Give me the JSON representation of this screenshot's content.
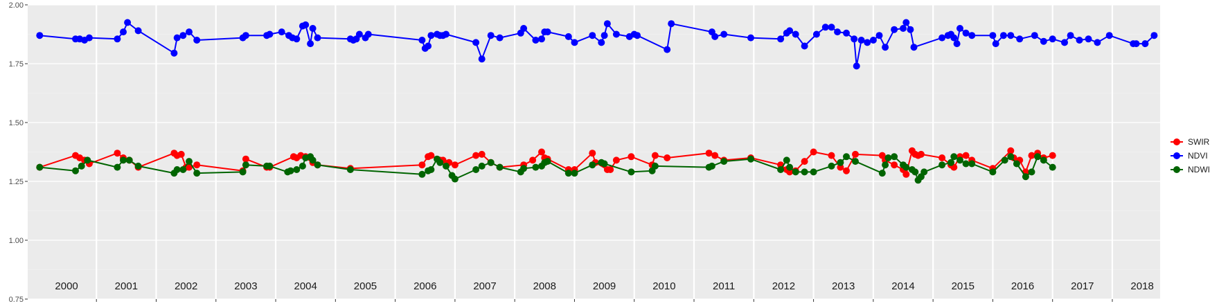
{
  "chart_data": {
    "type": "line",
    "title": "",
    "xlabel": "",
    "ylabel": "",
    "xlim": [
      1999.85,
      2018.8
    ],
    "ylim": [
      0.75,
      2.0
    ],
    "y_ticks": [
      "0.75",
      "1.00",
      "1.25",
      "1.50",
      "1.75",
      "2.00"
    ],
    "year_labels": [
      "2000",
      "2001",
      "2002",
      "2003",
      "2004",
      "2005",
      "2006",
      "2007",
      "2008",
      "2009",
      "2010",
      "2011",
      "2012",
      "2013",
      "2014",
      "2015",
      "2016",
      "2017",
      "2018"
    ],
    "grid": true,
    "legend_position": "right",
    "x": [
      2000.05,
      2000.65,
      2000.72,
      2000.8,
      2000.88,
      2001.35,
      2001.45,
      2001.55,
      2001.7,
      2002.3,
      2002.35,
      2002.45,
      2002.55,
      2002.68,
      2003.45,
      2003.5,
      2003.85,
      2003.9,
      2004.1,
      2004.22,
      2004.35,
      2004.45,
      2004.5,
      2004.58,
      2004.62,
      2004.7,
      2005.25,
      2005.3,
      2005.35,
      2005.4,
      2005.5,
      2005.55,
      2006.45,
      2006.5,
      2006.55,
      2006.7,
      2006.75,
      2006.8,
      2006.85,
      2007.0,
      2007.1,
      2007.35,
      2007.45,
      2007.6,
      2007.75,
      2008.1,
      2008.15,
      2008.35,
      2008.45,
      2008.5,
      2008.55,
      2008.9,
      2009.0,
      2009.3,
      2009.4,
      2009.5,
      2009.55,
      2009.7,
      2009.92,
      2010.0,
      2010.25,
      2010.35,
      2010.55,
      2010.62,
      2011.3,
      2011.35,
      2011.5,
      2011.95,
      2012.45,
      2012.55,
      2012.6,
      2012.7,
      2012.85,
      2013.05,
      2013.2,
      2013.3,
      2013.45,
      2013.55,
      2013.7,
      2013.9,
      2013.95,
      2014.0,
      2014.1,
      2014.2,
      2014.35,
      2014.5,
      2014.55,
      2014.65,
      2014.68,
      2014.72,
      2014.8,
      2014.85,
      2014.9,
      2014.95,
      2015.0,
      2015.3,
      2015.55,
      2015.6,
      2015.7,
      2015.8,
      2015.9,
      2016.05,
      2016.18,
      2016.3,
      2016.4,
      2016.7,
      2016.85,
      2017.0,
      2017.15,
      2017.3,
      2017.45,
      2017.6,
      2017.7,
      2017.8,
      2017.95,
      2018.35,
      2018.4,
      2018.7
    ],
    "series": [
      {
        "name": "SWIR",
        "color": "#ff0000",
        "x": [
          2000.05,
          2000.65,
          2000.72,
          2000.8,
          2000.88,
          2001.35,
          2001.45,
          2001.55,
          2001.7,
          2002.3,
          2002.35,
          2002.42,
          2002.5,
          2002.55,
          2002.68,
          2003.45,
          2003.5,
          2003.85,
          2003.9,
          2004.3,
          2004.35,
          2004.42,
          2004.5,
          2004.58,
          2004.62,
          2004.7,
          2005.25,
          2006.45,
          2006.55,
          2006.6,
          2006.75,
          2006.8,
          2006.9,
          2007.0,
          2007.35,
          2007.45,
          2007.6,
          2007.75,
          2008.15,
          2008.3,
          2008.45,
          2008.5,
          2008.55,
          2008.9,
          2009.0,
          2009.3,
          2009.35,
          2009.55,
          2009.6,
          2009.7,
          2009.95,
          2010.3,
          2010.35,
          2010.55,
          2011.25,
          2011.35,
          2011.5,
          2011.95,
          2012.45,
          2012.55,
          2012.6,
          2012.7,
          2012.85,
          2013.0,
          2013.3,
          2013.45,
          2013.55,
          2013.7,
          2014.15,
          2014.2,
          2014.35,
          2014.5,
          2014.55,
          2014.65,
          2014.7,
          2014.75,
          2014.8,
          2015.15,
          2015.3,
          2015.35,
          2015.45,
          2015.55,
          2015.65,
          2016.0,
          2016.3,
          2016.35,
          2016.45,
          2016.55,
          2016.65,
          2016.75,
          2016.85,
          2017.0
        ],
        "values": [
          1.31,
          1.36,
          1.35,
          1.34,
          1.325,
          1.37,
          1.35,
          1.34,
          1.31,
          1.37,
          1.36,
          1.365,
          1.31,
          1.31,
          1.32,
          1.295,
          1.345,
          1.31,
          1.31,
          1.355,
          1.35,
          1.36,
          1.355,
          1.35,
          1.33,
          1.32,
          1.305,
          1.32,
          1.355,
          1.36,
          1.34,
          1.34,
          1.33,
          1.32,
          1.36,
          1.365,
          1.33,
          1.31,
          1.32,
          1.34,
          1.375,
          1.35,
          1.345,
          1.3,
          1.3,
          1.37,
          1.33,
          1.3,
          1.3,
          1.34,
          1.355,
          1.32,
          1.36,
          1.35,
          1.37,
          1.36,
          1.34,
          1.35,
          1.32,
          1.3,
          1.29,
          1.295,
          1.335,
          1.375,
          1.36,
          1.31,
          1.295,
          1.365,
          1.36,
          1.34,
          1.32,
          1.3,
          1.28,
          1.38,
          1.365,
          1.36,
          1.365,
          1.35,
          1.32,
          1.31,
          1.355,
          1.36,
          1.34,
          1.305,
          1.38,
          1.35,
          1.34,
          1.29,
          1.36,
          1.37,
          1.35,
          1.36
        ]
      },
      {
        "name": "NDVI",
        "color": "#0000ff",
        "x": [
          2000.05,
          2000.65,
          2000.72,
          2000.8,
          2000.88,
          2001.35,
          2001.45,
          2001.52,
          2001.7,
          2002.3,
          2002.35,
          2002.45,
          2002.55,
          2002.68,
          2003.45,
          2003.5,
          2003.85,
          2003.9,
          2004.1,
          2004.22,
          2004.28,
          2004.35,
          2004.45,
          2004.5,
          2004.58,
          2004.62,
          2004.7,
          2005.25,
          2005.3,
          2005.35,
          2005.4,
          2005.5,
          2005.55,
          2006.45,
          2006.5,
          2006.55,
          2006.6,
          2006.7,
          2006.75,
          2006.8,
          2006.85,
          2007.35,
          2007.45,
          2007.6,
          2007.75,
          2008.1,
          2008.15,
          2008.35,
          2008.45,
          2008.5,
          2008.55,
          2008.9,
          2009.0,
          2009.3,
          2009.45,
          2009.5,
          2009.55,
          2009.7,
          2009.92,
          2010.0,
          2010.05,
          2010.55,
          2010.62,
          2011.3,
          2011.35,
          2011.5,
          2011.95,
          2012.45,
          2012.55,
          2012.6,
          2012.7,
          2012.85,
          2013.05,
          2013.2,
          2013.3,
          2013.4,
          2013.55,
          2013.68,
          2013.72,
          2013.8,
          2013.9,
          2014.0,
          2014.1,
          2014.2,
          2014.35,
          2014.5,
          2014.55,
          2014.62,
          2014.68,
          2015.15,
          2015.25,
          2015.3,
          2015.35,
          2015.4,
          2015.45,
          2015.55,
          2015.65,
          2016.0,
          2016.05,
          2016.18,
          2016.3,
          2016.45,
          2016.7,
          2016.85,
          2017.0,
          2017.2,
          2017.3,
          2017.45,
          2017.6,
          2017.75,
          2017.95,
          2018.35,
          2018.4,
          2018.55,
          2018.7
        ],
        "values": [
          1.87,
          1.855,
          1.855,
          1.85,
          1.86,
          1.855,
          1.885,
          1.925,
          1.89,
          1.795,
          1.86,
          1.87,
          1.885,
          1.85,
          1.86,
          1.87,
          1.87,
          1.875,
          1.885,
          1.87,
          1.86,
          1.855,
          1.91,
          1.915,
          1.835,
          1.9,
          1.86,
          1.855,
          1.85,
          1.855,
          1.875,
          1.86,
          1.875,
          1.85,
          1.815,
          1.825,
          1.87,
          1.875,
          1.87,
          1.87,
          1.875,
          1.84,
          1.77,
          1.87,
          1.86,
          1.88,
          1.9,
          1.85,
          1.855,
          1.885,
          1.885,
          1.865,
          1.84,
          1.87,
          1.84,
          1.87,
          1.92,
          1.875,
          1.865,
          1.875,
          1.87,
          1.81,
          1.92,
          1.885,
          1.865,
          1.875,
          1.86,
          1.855,
          1.88,
          1.89,
          1.875,
          1.825,
          1.875,
          1.905,
          1.905,
          1.885,
          1.88,
          1.855,
          1.74,
          1.85,
          1.84,
          1.85,
          1.87,
          1.82,
          1.895,
          1.9,
          1.925,
          1.895,
          1.82,
          1.86,
          1.87,
          1.875,
          1.86,
          1.835,
          1.9,
          1.88,
          1.87,
          1.87,
          1.835,
          1.87,
          1.87,
          1.855,
          1.87,
          1.845,
          1.855,
          1.84,
          1.87,
          1.85,
          1.855,
          1.84,
          1.87,
          1.835,
          1.835,
          1.835,
          1.87
        ]
      },
      {
        "name": "NDWI",
        "color": "#006400",
        "x": [
          2000.05,
          2000.65,
          2000.75,
          2000.85,
          2001.35,
          2001.45,
          2001.55,
          2001.7,
          2002.3,
          2002.35,
          2002.45,
          2002.55,
          2002.68,
          2003.45,
          2003.5,
          2003.85,
          2003.9,
          2004.2,
          2004.25,
          2004.35,
          2004.45,
          2004.5,
          2004.58,
          2004.62,
          2004.7,
          2005.25,
          2006.45,
          2006.55,
          2006.6,
          2006.7,
          2006.75,
          2006.85,
          2006.95,
          2007.0,
          2007.35,
          2007.45,
          2007.6,
          2007.75,
          2008.1,
          2008.15,
          2008.35,
          2008.45,
          2008.5,
          2008.55,
          2008.9,
          2009.0,
          2009.3,
          2009.45,
          2009.5,
          2009.95,
          2010.3,
          2010.35,
          2011.25,
          2011.3,
          2011.5,
          2011.95,
          2012.45,
          2012.55,
          2012.6,
          2012.7,
          2012.85,
          2013.0,
          2013.3,
          2013.45,
          2013.55,
          2013.7,
          2014.15,
          2014.2,
          2014.25,
          2014.35,
          2014.5,
          2014.55,
          2014.65,
          2014.7,
          2014.75,
          2014.8,
          2014.85,
          2015.15,
          2015.3,
          2015.35,
          2015.45,
          2015.55,
          2015.65,
          2016.0,
          2016.2,
          2016.3,
          2016.4,
          2016.55,
          2016.65,
          2016.75,
          2016.85,
          2017.0
        ],
        "values": [
          1.31,
          1.295,
          1.315,
          1.34,
          1.31,
          1.34,
          1.34,
          1.315,
          1.285,
          1.3,
          1.3,
          1.335,
          1.285,
          1.29,
          1.32,
          1.315,
          1.315,
          1.29,
          1.295,
          1.3,
          1.315,
          1.35,
          1.355,
          1.34,
          1.32,
          1.3,
          1.28,
          1.295,
          1.3,
          1.345,
          1.33,
          1.315,
          1.275,
          1.26,
          1.3,
          1.315,
          1.33,
          1.31,
          1.29,
          1.305,
          1.31,
          1.315,
          1.33,
          1.335,
          1.285,
          1.285,
          1.32,
          1.33,
          1.325,
          1.29,
          1.295,
          1.315,
          1.31,
          1.315,
          1.335,
          1.345,
          1.3,
          1.34,
          1.31,
          1.29,
          1.29,
          1.29,
          1.315,
          1.33,
          1.355,
          1.335,
          1.285,
          1.32,
          1.35,
          1.355,
          1.32,
          1.31,
          1.3,
          1.29,
          1.255,
          1.27,
          1.29,
          1.32,
          1.33,
          1.355,
          1.34,
          1.325,
          1.325,
          1.29,
          1.34,
          1.355,
          1.325,
          1.27,
          1.29,
          1.355,
          1.34,
          1.31
        ]
      }
    ]
  }
}
